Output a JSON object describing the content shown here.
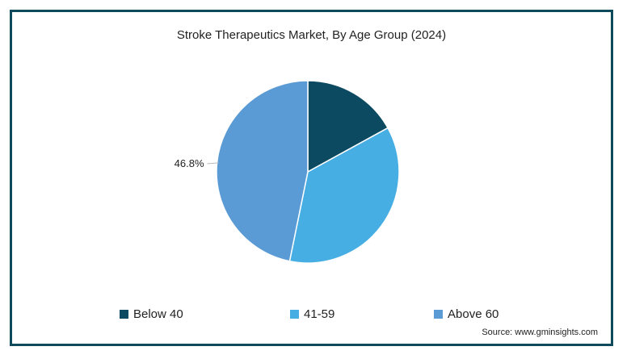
{
  "chart_data": {
    "type": "pie",
    "title": "Stroke Therapeutics Market, By Age Group (2024)",
    "categories": [
      "Below 40",
      "41-59",
      "Above 60"
    ],
    "values": [
      17.0,
      36.2,
      46.8
    ],
    "colors": [
      "#0b4a60",
      "#47aee3",
      "#5b9bd5"
    ],
    "data_labels": [
      null,
      null,
      "46.8%"
    ],
    "legend_position": "bottom"
  },
  "source": "Source: www.gminsights.com"
}
